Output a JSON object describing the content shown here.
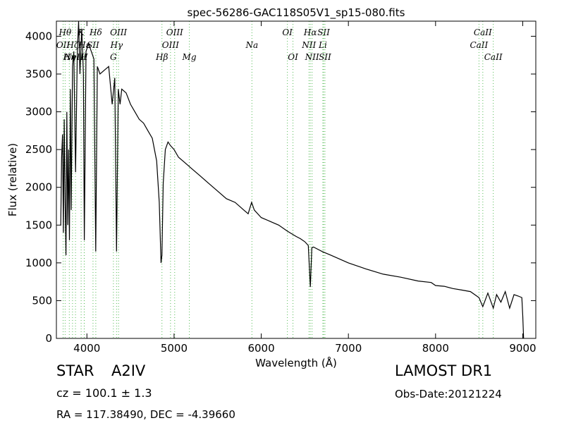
{
  "chart_data": {
    "type": "line",
    "title": "spec-56286-GAC118S05V1_sp15-080.fits",
    "xlabel": "Wavelength (Å)",
    "ylabel": "Flux (relative)",
    "xlim": [
      3650,
      9150
    ],
    "ylim": [
      0,
      4200
    ],
    "xticks": [
      4000,
      5000,
      6000,
      7000,
      8000,
      9000
    ],
    "yticks": [
      0,
      500,
      1000,
      1500,
      2000,
      2500,
      3000,
      3500,
      4000
    ],
    "series": [
      {
        "color": "#000000",
        "x": [
          3700,
          3710,
          3720,
          3730,
          3740,
          3750,
          3760,
          3770,
          3780,
          3790,
          3800,
          3810,
          3820,
          3835,
          3850,
          3870,
          3890,
          3905,
          3920,
          3940,
          3960,
          3970,
          3990,
          4020,
          4050,
          4080,
          4101,
          4120,
          4150,
          4200,
          4250,
          4290,
          4320,
          4340,
          4360,
          4380,
          4400,
          4450,
          4500,
          4550,
          4600,
          4650,
          4700,
          4750,
          4800,
          4830,
          4850,
          4861,
          4875,
          4900,
          4930,
          4960,
          5000,
          5050,
          5100,
          5150,
          5200,
          5300,
          5400,
          5500,
          5600,
          5700,
          5800,
          5850,
          5890,
          5920,
          6000,
          6100,
          6200,
          6300,
          6400,
          6450,
          6500,
          6540,
          6563,
          6580,
          6600,
          6650,
          6700,
          6800,
          7000,
          7200,
          7400,
          7600,
          7800,
          7950,
          8000,
          8100,
          8200,
          8300,
          8400,
          8498,
          8542,
          8600,
          8662,
          8700,
          8750,
          8800,
          8850,
          8900,
          8950,
          8990,
          9000,
          9010
        ],
        "y": [
          1500,
          2400,
          2700,
          1400,
          2900,
          1800,
          1100,
          3000,
          1500,
          2500,
          1300,
          3300,
          1700,
          3600,
          3800,
          2200,
          3800,
          4300,
          3500,
          4100,
          3500,
          1300,
          3800,
          3900,
          3800,
          3700,
          1150,
          3600,
          3500,
          3550,
          3600,
          3100,
          3450,
          1150,
          3300,
          3100,
          3300,
          3250,
          3100,
          3000,
          2900,
          2850,
          2750,
          2650,
          2350,
          1800,
          1000,
          1100,
          2050,
          2500,
          2600,
          2550,
          2500,
          2400,
          2350,
          2300,
          2250,
          2150,
          2050,
          1950,
          1850,
          1800,
          1700,
          1650,
          1800,
          1700,
          1600,
          1550,
          1500,
          1420,
          1350,
          1320,
          1280,
          1230,
          680,
          1200,
          1210,
          1180,
          1150,
          1100,
          1000,
          920,
          850,
          810,
          760,
          740,
          700,
          690,
          660,
          640,
          620,
          540,
          420,
          600,
          400,
          580,
          480,
          620,
          400,
          580,
          560,
          540,
          300,
          0
        ]
      }
    ],
    "lines": [
      {
        "x": 3727,
        "label": "OII",
        "row": 2
      },
      {
        "x": 3750,
        "label": "Hθ",
        "row": 1
      },
      {
        "x": 3798,
        "label": "Hη",
        "row": 3
      },
      {
        "x": 3835,
        "label": "Hζ",
        "row": 2
      },
      {
        "x": 3869,
        "label": "NeIII",
        "row": 3
      },
      {
        "x": 3934,
        "label": "K",
        "row": 1
      },
      {
        "x": 3969,
        "label": "H",
        "row": 3
      },
      {
        "x": 3970,
        "label": "Hε",
        "row": 2
      },
      {
        "x": 4070,
        "label": "SII",
        "row": 2
      },
      {
        "x": 4102,
        "label": "Hδ",
        "row": 1
      },
      {
        "x": 4304,
        "label": "G",
        "row": 3
      },
      {
        "x": 4340,
        "label": "Hγ",
        "row": 2
      },
      {
        "x": 4363,
        "label": "OIII",
        "row": 1
      },
      {
        "x": 4861,
        "label": "Hβ",
        "row": 3
      },
      {
        "x": 4959,
        "label": "OIII",
        "row": 2
      },
      {
        "x": 5007,
        "label": "OIII",
        "row": 1
      },
      {
        "x": 5175,
        "label": "Mg",
        "row": 3
      },
      {
        "x": 5893,
        "label": "Na",
        "row": 2
      },
      {
        "x": 6300,
        "label": "OI",
        "row": 1
      },
      {
        "x": 6364,
        "label": "OI",
        "row": 3
      },
      {
        "x": 6548,
        "label": "NII",
        "row": 2
      },
      {
        "x": 6563,
        "label": "Hα",
        "row": 1
      },
      {
        "x": 6583,
        "label": "NII",
        "row": 3
      },
      {
        "x": 6707,
        "label": "Li",
        "row": 2
      },
      {
        "x": 6716,
        "label": "SII",
        "row": 1
      },
      {
        "x": 6731,
        "label": "SII",
        "row": 3
      },
      {
        "x": 8498,
        "label": "CaII",
        "row": 2
      },
      {
        "x": 8542,
        "label": "CaII",
        "row": 1
      },
      {
        "x": 8662,
        "label": "CaII",
        "row": 3
      }
    ]
  },
  "info": {
    "object_class": "STAR",
    "subclass": "A2IV",
    "survey": "LAMOST DR1",
    "redshift": "cz = 100.1 ± 1.3",
    "obs_date": "Obs-Date:20121224",
    "coordinates": "RA = 117.38490, DEC = -4.39660"
  }
}
